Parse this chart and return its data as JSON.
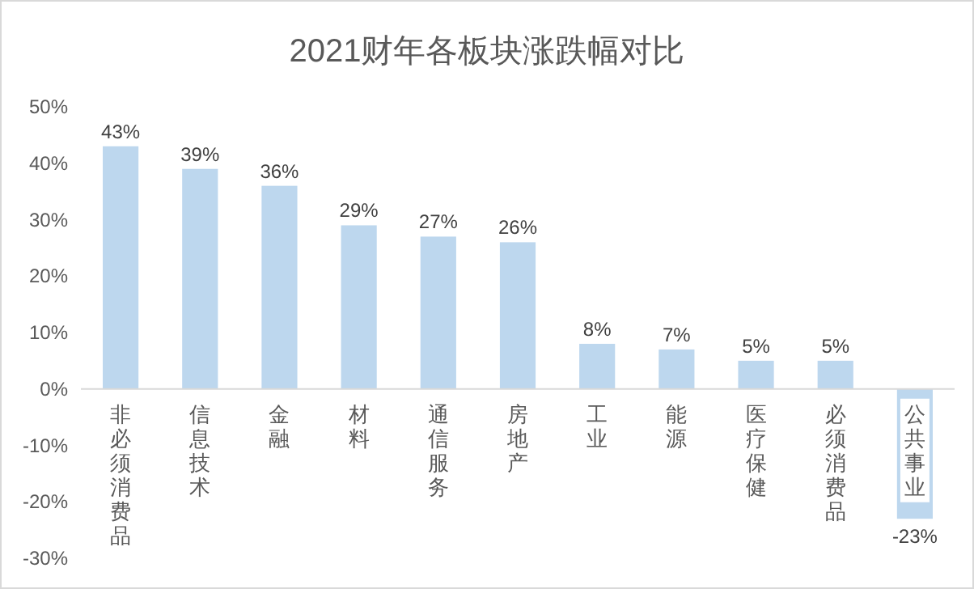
{
  "chart_data": {
    "type": "bar",
    "title": "2021财年各板块涨跌幅对比",
    "categories": [
      "非必须消费品",
      "信息技术",
      "金融",
      "材料",
      "通信服务",
      "房地产",
      "工业",
      "能源",
      "医疗保健",
      "必须消费品",
      "公共事业"
    ],
    "values": [
      43,
      39,
      36,
      29,
      27,
      26,
      8,
      7,
      5,
      5,
      -23
    ],
    "color": "#bdd7ee",
    "value_labels": [
      "43%",
      "39%",
      "36%",
      "29%",
      "27%",
      "26%",
      "8%",
      "7%",
      "5%",
      "5%",
      "-23%"
    ],
    "ylim": [
      -30,
      50
    ],
    "yticks": [
      {
        "value": 50,
        "label": "50%"
      },
      {
        "value": 40,
        "label": "40%"
      },
      {
        "value": 30,
        "label": "30%"
      },
      {
        "value": 20,
        "label": "20%"
      },
      {
        "value": 10,
        "label": "10%"
      },
      {
        "value": 0,
        "label": "0%"
      },
      {
        "value": -10,
        "label": "-10%"
      },
      {
        "value": -20,
        "label": "-20%"
      },
      {
        "value": -30,
        "label": "-30%"
      }
    ]
  }
}
